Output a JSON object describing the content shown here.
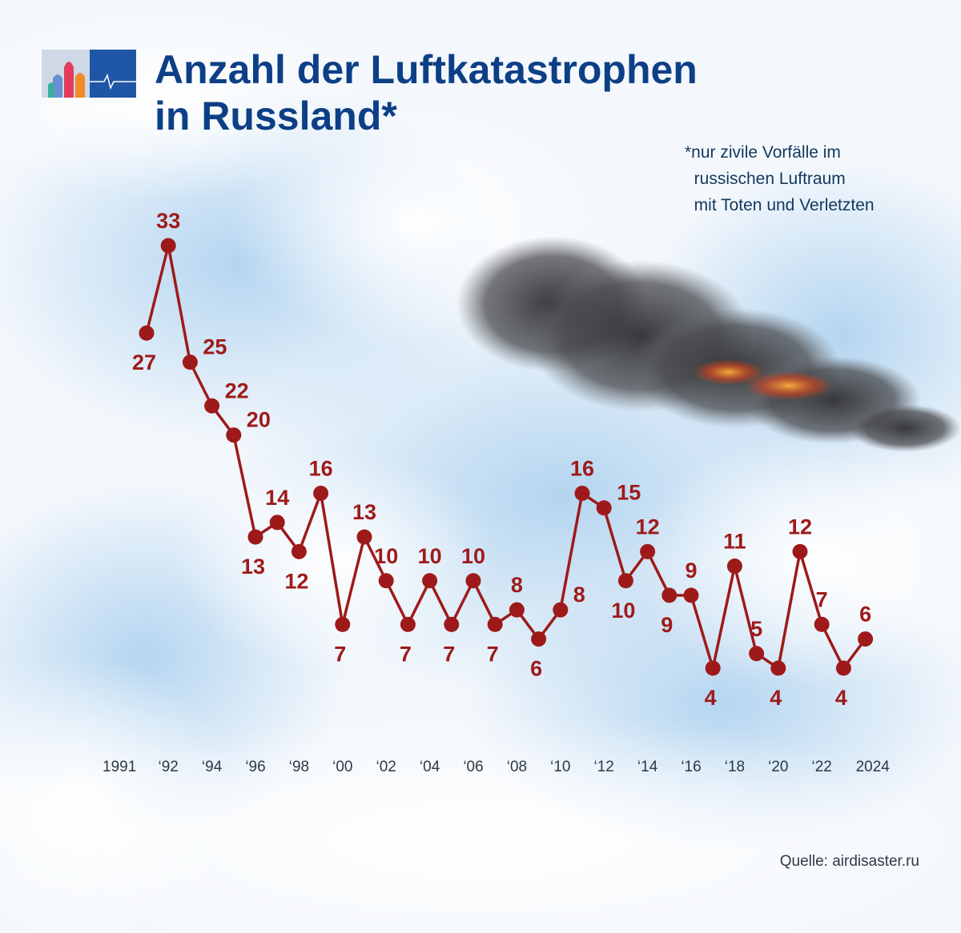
{
  "title_line1": "Anzahl der Luftkatastrophen",
  "title_line2": "in Russland*",
  "footnote": [
    "*nur zivile Vorfälle im",
    "  russischen Luftraum",
    "  mit Toten und Verletzten"
  ],
  "source": "Quelle: airdisaster.ru",
  "colors": {
    "title": "#0d3f86",
    "series": "#9e1a1a",
    "sky": "#d6e8f6"
  },
  "chart_data": {
    "type": "line",
    "title": "Anzahl der Luftkatastrophen in Russland*",
    "xlabel": "",
    "ylabel": "",
    "grid": false,
    "x": [
      1991,
      1992,
      1993,
      1994,
      1995,
      1996,
      1997,
      1998,
      1999,
      2000,
      2001,
      2002,
      2003,
      2004,
      2005,
      2006,
      2007,
      2008,
      2009,
      2010,
      2011,
      2012,
      2013,
      2014,
      2015,
      2016,
      2017,
      2018,
      2019,
      2020,
      2021,
      2022,
      2023,
      2024
    ],
    "values": [
      27,
      33,
      25,
      22,
      20,
      13,
      14,
      12,
      16,
      7,
      13,
      10,
      7,
      10,
      7,
      10,
      7,
      8,
      6,
      8,
      16,
      15,
      10,
      12,
      9,
      9,
      4,
      11,
      5,
      4,
      12,
      7,
      4,
      6
    ],
    "label_positions": [
      "below",
      "above",
      "right",
      "right",
      "right",
      "below",
      "above",
      "below",
      "above",
      "below",
      "above",
      "above",
      "below",
      "above",
      "below",
      "above",
      "below",
      "above",
      "below",
      "right",
      "above",
      "right",
      "below",
      "above",
      "below",
      "above",
      "below",
      "above",
      "above",
      "below",
      "above",
      "above",
      "below",
      "above"
    ],
    "tick_labels": [
      "1991",
      "‘92",
      "‘94",
      "‘96",
      "‘98",
      "‘00",
      "‘02",
      "‘04",
      "‘06",
      "‘08",
      "‘10",
      "‘12",
      "‘14",
      "‘16",
      "‘18",
      "‘20",
      "‘22",
      "2024"
    ],
    "tick_years": [
      1991,
      1992,
      1994,
      1996,
      1998,
      2000,
      2002,
      2004,
      2006,
      2008,
      2010,
      2012,
      2014,
      2016,
      2018,
      2020,
      2022,
      2024
    ],
    "ylim": [
      4,
      33
    ]
  }
}
